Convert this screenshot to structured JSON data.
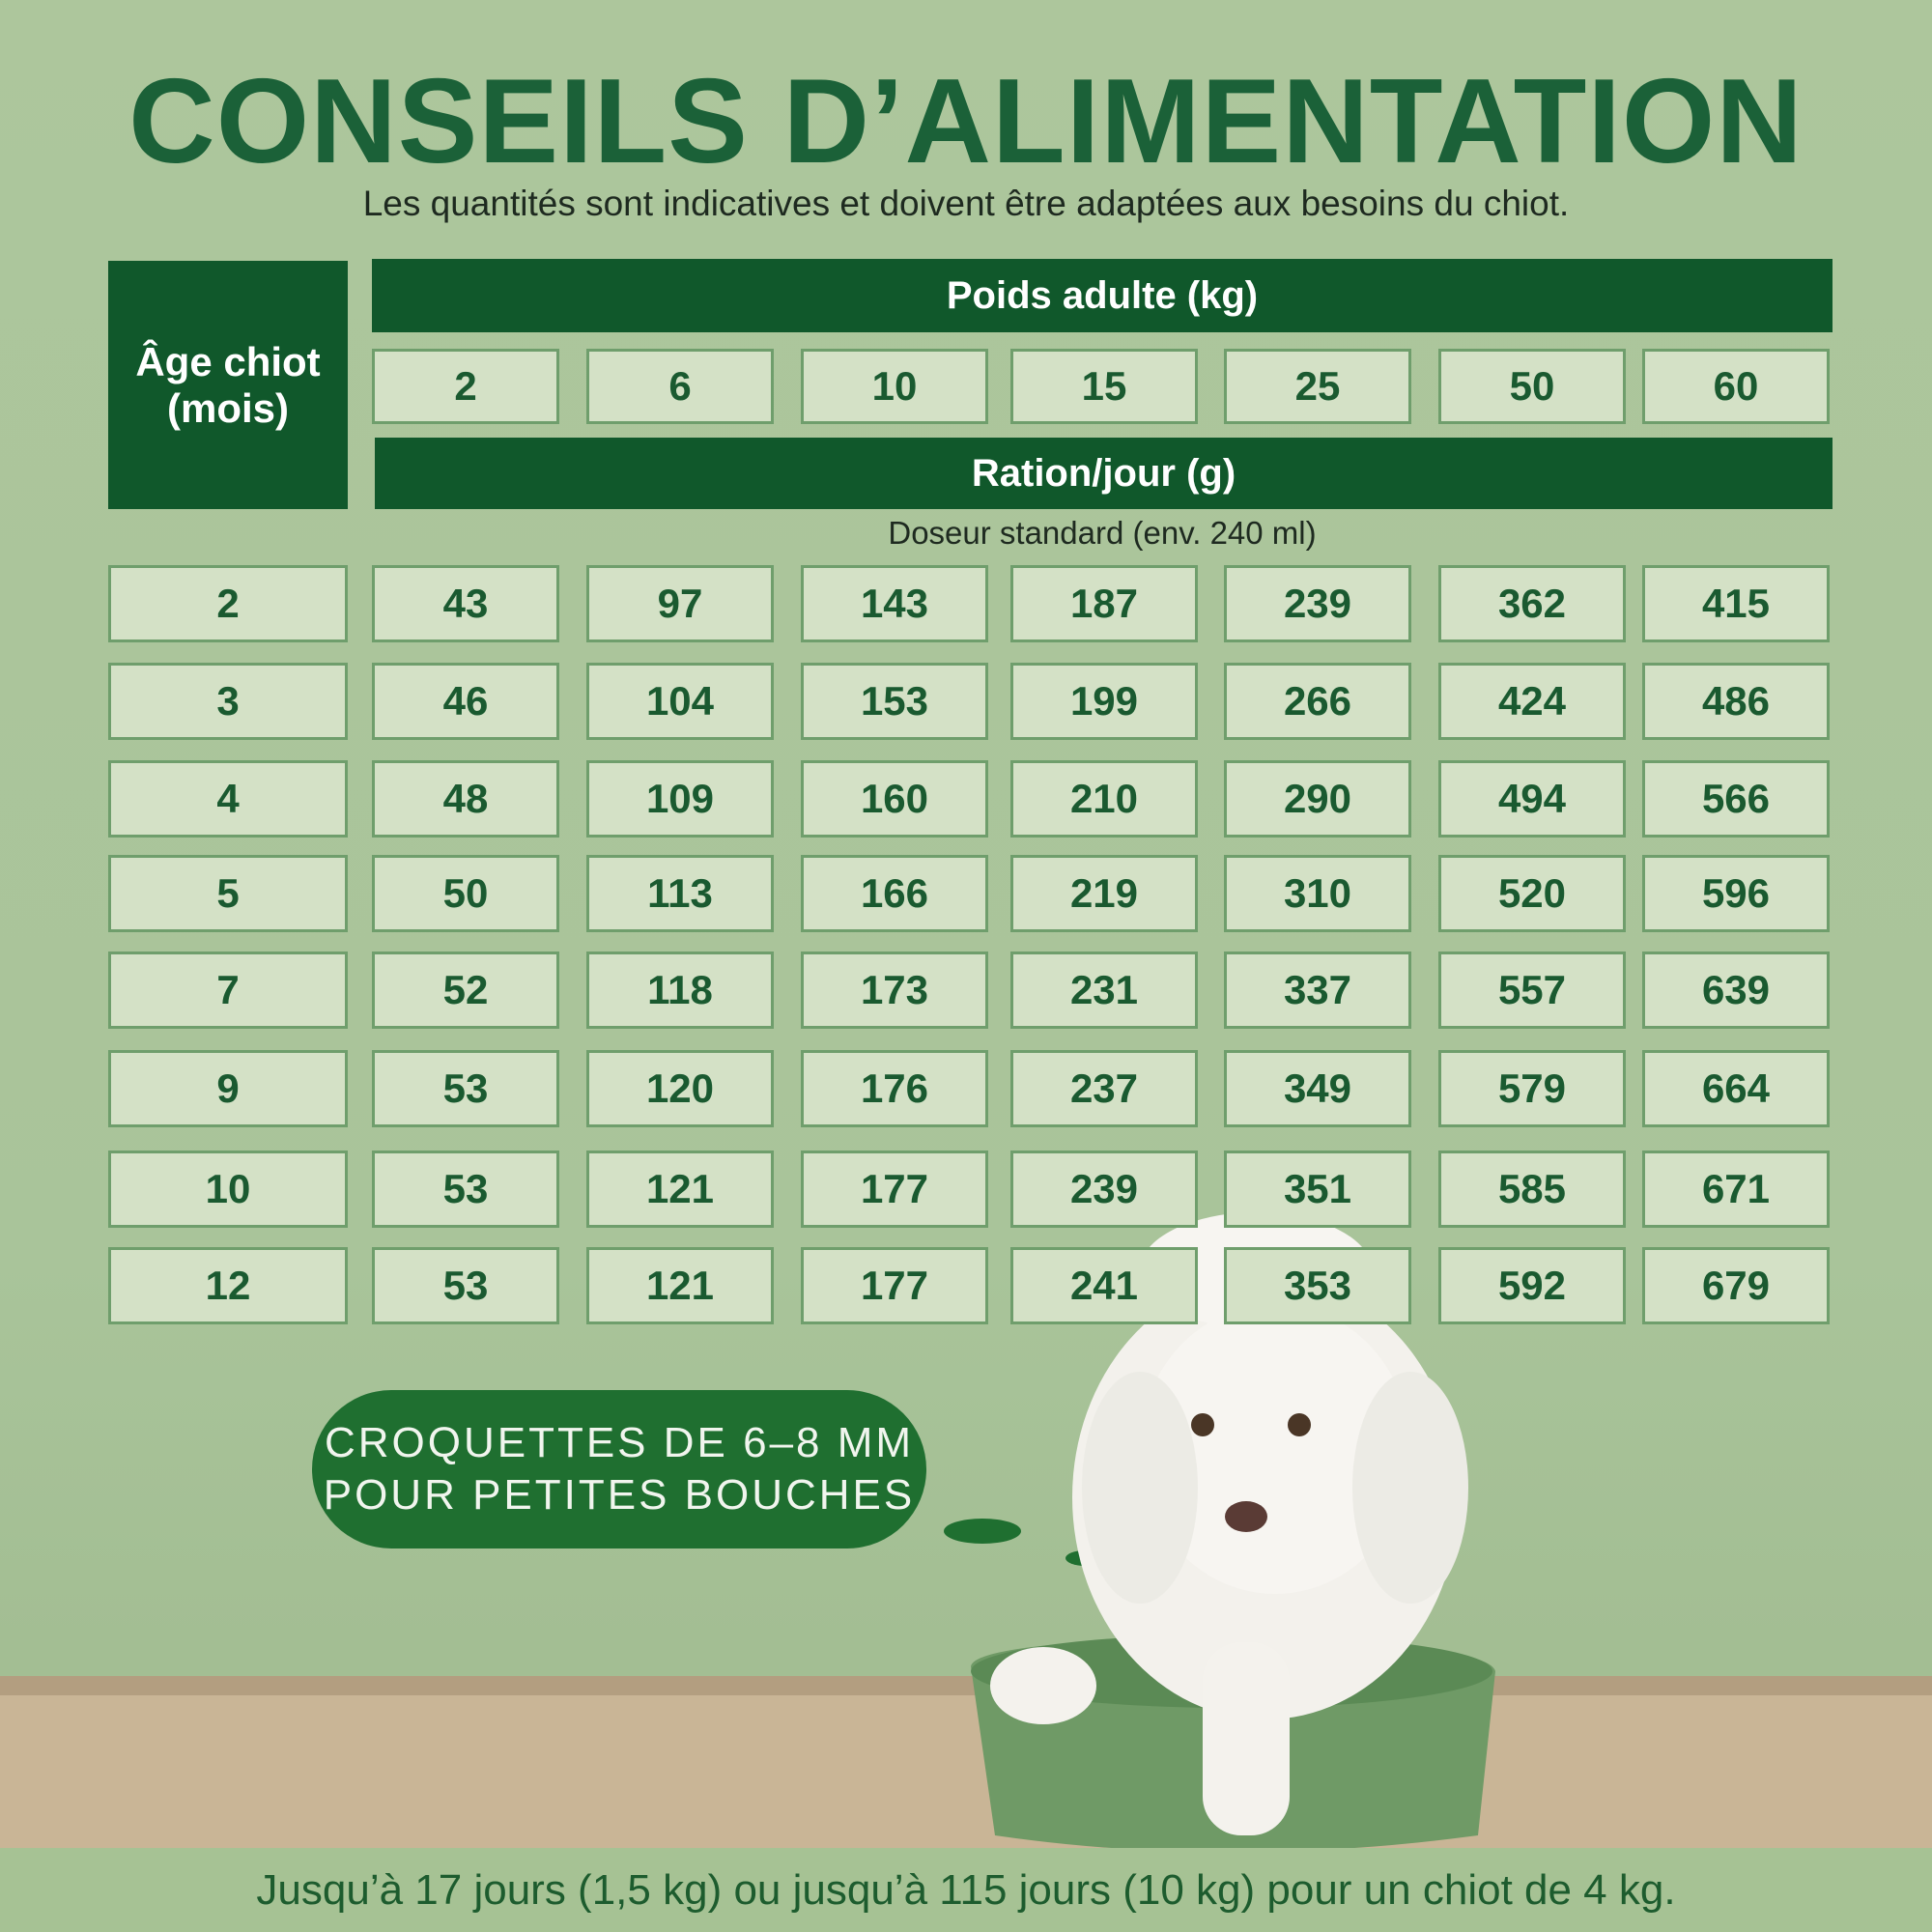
{
  "header": {
    "title": "CONSEILS D’ALIMENTATION",
    "subtitle": "Les quantités sont indicatives et doivent être adaptées aux besoins du chiot."
  },
  "table": {
    "row_header": "Âge chiot (mois)",
    "group_header": "Poids adulte (kg)",
    "columns": [
      2,
      6,
      10,
      15,
      25,
      50,
      60
    ],
    "subheader": "Ration/jour (g)",
    "note": "Doseur standard (env. 240 ml)",
    "rows": [
      {
        "age": 2,
        "values": [
          43,
          97,
          143,
          187,
          239,
          362,
          415
        ]
      },
      {
        "age": 3,
        "values": [
          46,
          104,
          153,
          199,
          266,
          424,
          486
        ]
      },
      {
        "age": 4,
        "values": [
          48,
          109,
          160,
          210,
          290,
          494,
          566
        ]
      },
      {
        "age": 5,
        "values": [
          50,
          113,
          166,
          219,
          310,
          520,
          596
        ]
      },
      {
        "age": 7,
        "values": [
          52,
          118,
          173,
          231,
          337,
          557,
          639
        ]
      },
      {
        "age": 9,
        "values": [
          53,
          120,
          176,
          237,
          349,
          579,
          664
        ]
      },
      {
        "age": 10,
        "values": [
          53,
          121,
          177,
          239,
          351,
          585,
          671
        ]
      },
      {
        "age": 12,
        "values": [
          53,
          121,
          177,
          241,
          353,
          592,
          679
        ]
      }
    ]
  },
  "badge": {
    "lines": [
      "CROQUETTES DE 6–8 MM",
      "POUR PETITES BOUCHES"
    ]
  },
  "footer": "Jusqu’à 17 jours (1,5 kg) ou jusqu’à 115 jours (10 kg) pour un chiot de 4 kg."
}
